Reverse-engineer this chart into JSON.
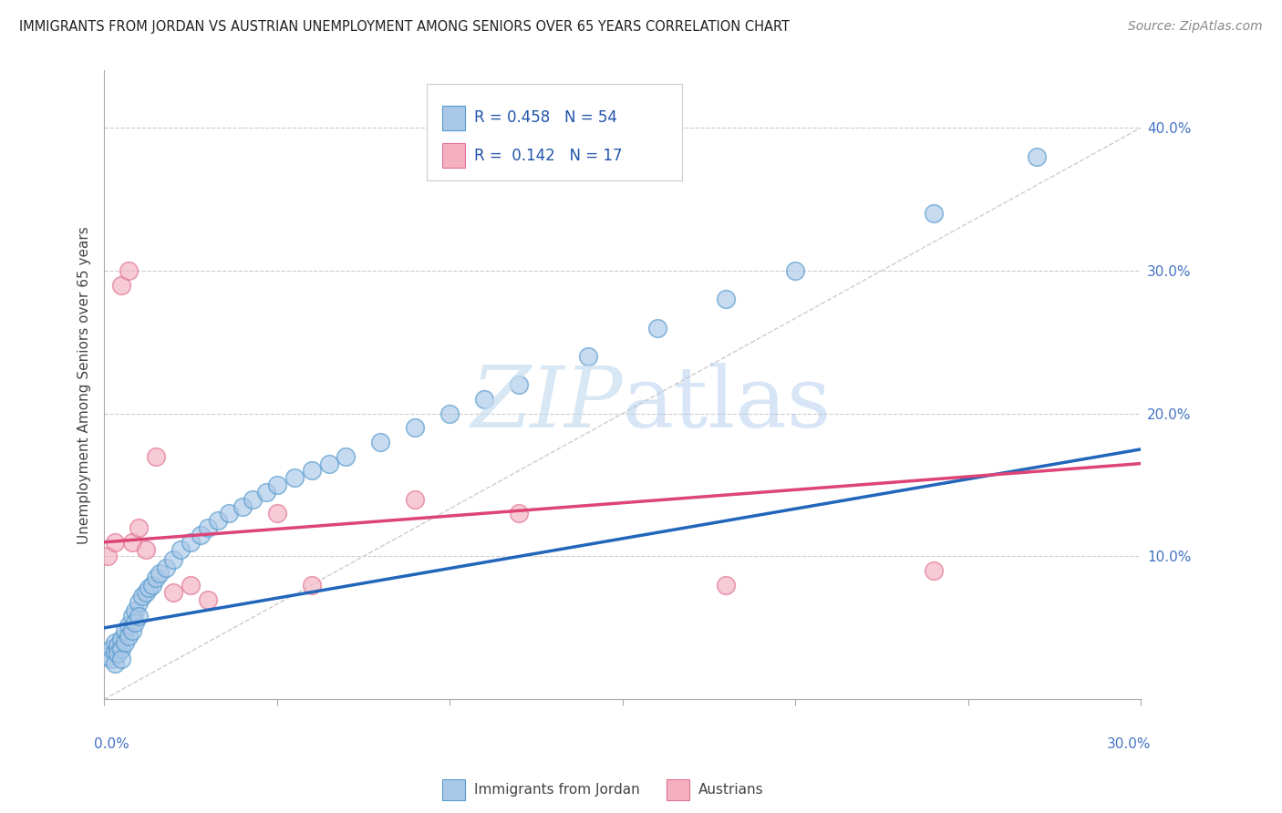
{
  "title": "IMMIGRANTS FROM JORDAN VS AUSTRIAN UNEMPLOYMENT AMONG SENIORS OVER 65 YEARS CORRELATION CHART",
  "source": "Source: ZipAtlas.com",
  "ylabel": "Unemployment Among Seniors over 65 years",
  "yticks": [
    "",
    "10.0%",
    "20.0%",
    "30.0%",
    "40.0%"
  ],
  "ytick_vals": [
    0.0,
    0.1,
    0.2,
    0.3,
    0.4
  ],
  "xlim": [
    0.0,
    0.3
  ],
  "ylim": [
    0.0,
    0.44
  ],
  "blue_R": "0.458",
  "blue_N": "54",
  "pink_R": "0.142",
  "pink_N": "17",
  "blue_face": "#aac8e8",
  "blue_edge": "#5599cc",
  "pink_face": "#f4b0c0",
  "pink_edge": "#e07090",
  "blue_label": "Immigrants from Jordan",
  "pink_label": "Austrians",
  "watermark_zip": "ZIP",
  "watermark_atlas": "atlas",
  "blue_scatter_x": [
    0.001,
    0.002,
    0.002,
    0.003,
    0.003,
    0.003,
    0.004,
    0.004,
    0.005,
    0.005,
    0.005,
    0.006,
    0.006,
    0.007,
    0.007,
    0.008,
    0.008,
    0.009,
    0.009,
    0.01,
    0.01,
    0.011,
    0.012,
    0.013,
    0.014,
    0.015,
    0.016,
    0.018,
    0.02,
    0.022,
    0.025,
    0.028,
    0.03,
    0.033,
    0.036,
    0.04,
    0.043,
    0.047,
    0.05,
    0.055,
    0.06,
    0.065,
    0.07,
    0.08,
    0.09,
    0.1,
    0.11,
    0.12,
    0.14,
    0.16,
    0.18,
    0.2,
    0.24,
    0.27
  ],
  "blue_scatter_y": [
    0.03,
    0.035,
    0.028,
    0.04,
    0.033,
    0.025,
    0.038,
    0.032,
    0.042,
    0.035,
    0.028,
    0.048,
    0.04,
    0.052,
    0.044,
    0.058,
    0.048,
    0.062,
    0.054,
    0.068,
    0.058,
    0.072,
    0.075,
    0.078,
    0.08,
    0.085,
    0.088,
    0.092,
    0.098,
    0.105,
    0.11,
    0.115,
    0.12,
    0.125,
    0.13,
    0.135,
    0.14,
    0.145,
    0.15,
    0.155,
    0.16,
    0.165,
    0.17,
    0.18,
    0.19,
    0.2,
    0.21,
    0.22,
    0.24,
    0.26,
    0.28,
    0.3,
    0.34,
    0.38
  ],
  "pink_scatter_x": [
    0.001,
    0.003,
    0.005,
    0.007,
    0.008,
    0.01,
    0.012,
    0.015,
    0.02,
    0.025,
    0.03,
    0.05,
    0.06,
    0.09,
    0.12,
    0.18,
    0.24
  ],
  "pink_scatter_y": [
    0.1,
    0.11,
    0.29,
    0.3,
    0.11,
    0.12,
    0.105,
    0.17,
    0.075,
    0.08,
    0.07,
    0.13,
    0.08,
    0.14,
    0.13,
    0.08,
    0.09
  ],
  "blue_trend": [
    0.0,
    0.3,
    0.05,
    0.175
  ],
  "pink_trend": [
    0.0,
    0.3,
    0.11,
    0.165
  ],
  "ref_line": [
    0.0,
    0.3,
    0.0,
    0.4
  ]
}
